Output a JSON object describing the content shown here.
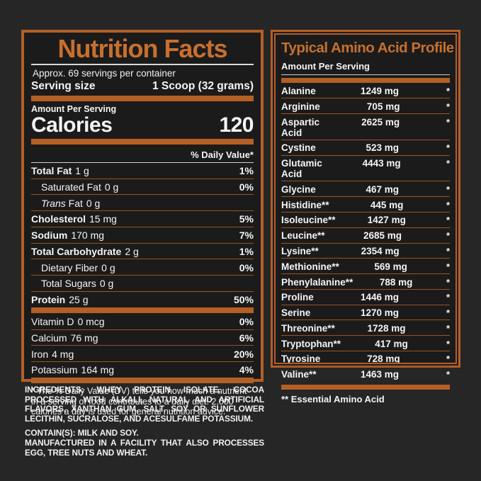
{
  "colors": {
    "background": "#262626",
    "panel_background": "#1b1b1b",
    "accent_orange": "#b45f26",
    "title_orange": "#c7702e",
    "separator_orange": "#9a531f",
    "text_white": "#f5f5f5"
  },
  "nutrition_facts": {
    "title": "Nutrition Facts",
    "servings_line": "Approx. 69 servings per container",
    "serving_size_label": "Serving size",
    "serving_size_value": "1 Scoop (32 grams)",
    "amount_per_serving_label": "Amount Per Serving",
    "calories_label": "Calories",
    "calories_value": "120",
    "daily_value_header": "% Daily Value*",
    "rows": [
      {
        "name": "Total Fat",
        "amount": "1 g",
        "dv": "1%",
        "bold": true,
        "indent": false,
        "italic_first": false,
        "thick_after": false
      },
      {
        "name": "Saturated Fat",
        "amount": "0 g",
        "dv": "0%",
        "bold": false,
        "indent": true,
        "italic_first": false,
        "thick_after": false
      },
      {
        "name": "Trans Fat",
        "amount": "0 g",
        "dv": "",
        "bold": false,
        "indent": true,
        "italic_first": true,
        "thick_after": false
      },
      {
        "name": "Cholesterol",
        "amount": "15 mg",
        "dv": "5%",
        "bold": true,
        "indent": false,
        "italic_first": false,
        "thick_after": false
      },
      {
        "name": "Sodium",
        "amount": "170 mg",
        "dv": "7%",
        "bold": true,
        "indent": false,
        "italic_first": false,
        "thick_after": false
      },
      {
        "name": "Total Carbohydrate",
        "amount": "2 g",
        "dv": "1%",
        "bold": true,
        "indent": false,
        "italic_first": false,
        "thick_after": false
      },
      {
        "name": "Dietary Fiber",
        "amount": "0 g",
        "dv": "0%",
        "bold": false,
        "indent": true,
        "italic_first": false,
        "thick_after": false
      },
      {
        "name": "Total Sugars",
        "amount": "0 g",
        "dv": "",
        "bold": false,
        "indent": true,
        "italic_first": false,
        "thick_after": false
      },
      {
        "name": "Protein",
        "amount": "25 g",
        "dv": "50%",
        "bold": true,
        "indent": false,
        "italic_first": false,
        "thick_after": true
      },
      {
        "name": "Vitamin D",
        "amount": "0 mcg",
        "dv": "0%",
        "bold": false,
        "indent": false,
        "italic_first": false,
        "thick_after": false
      },
      {
        "name": "Calcium",
        "amount": "76 mg",
        "dv": "6%",
        "bold": false,
        "indent": false,
        "italic_first": false,
        "thick_after": false
      },
      {
        "name": "Iron",
        "amount": "4 mg",
        "dv": "20%",
        "bold": false,
        "indent": false,
        "italic_first": false,
        "thick_after": false
      },
      {
        "name": "Potassium",
        "amount": "164 mg",
        "dv": "4%",
        "bold": false,
        "indent": false,
        "italic_first": false,
        "thick_after": true
      }
    ],
    "footnote": "* The % Daily Value (DV) tells you how much a nutrient in a serving of food contributes to a daily diet. 2,000 calories a day is used for general nutrition advice."
  },
  "amino_profile": {
    "title": "Typical Amino Acid Profile",
    "subtitle": "Amount Per Serving",
    "rows": [
      {
        "name": "Alanine",
        "amount": "1249 mg",
        "mark": "*"
      },
      {
        "name": "Arginine",
        "amount": "705 mg",
        "mark": "*"
      },
      {
        "name": "Aspartic Acid",
        "amount": "2625 mg",
        "mark": "*"
      },
      {
        "name": "Cystine",
        "amount": "523 mg",
        "mark": "*"
      },
      {
        "name": "Glutamic Acid",
        "amount": "4443 mg",
        "mark": "*"
      },
      {
        "name": "Glycine",
        "amount": "467 mg",
        "mark": "*"
      },
      {
        "name": "Histidine**",
        "amount": "445 mg",
        "mark": "*"
      },
      {
        "name": "Isoleucine**",
        "amount": "1427 mg",
        "mark": "*"
      },
      {
        "name": "Leucine**",
        "amount": "2685 mg",
        "mark": "*"
      },
      {
        "name": "Lysine**",
        "amount": "2354 mg",
        "mark": "*"
      },
      {
        "name": "Methionine**",
        "amount": "569 mg",
        "mark": "*"
      },
      {
        "name": "Phenylalanine**",
        "amount": "788 mg",
        "mark": "*"
      },
      {
        "name": "Proline",
        "amount": "1446 mg",
        "mark": "*"
      },
      {
        "name": "Serine",
        "amount": "1270 mg",
        "mark": "*"
      },
      {
        "name": "Threonine**",
        "amount": "1728 mg",
        "mark": "*"
      },
      {
        "name": "Tryptophan**",
        "amount": "417 mg",
        "mark": "*"
      },
      {
        "name": "Tyrosine",
        "amount": "728 mg",
        "mark": "*"
      },
      {
        "name": "Valine**",
        "amount": "1463 mg",
        "mark": "*"
      }
    ],
    "footnote": "** Essential Amino Acid"
  },
  "bottom": {
    "ingredients": "INGREDIENTS: WHEY PROTEIN ISOLATE, COCOA PROCESSED WITH ALKALI, NATURAL AND ARTIFICIAL FLAVORS, XANTHAN GUM, SALT, SOY OR SUNFLOWER LECITHIN, SUCRALOSE, AND ACESULFAME POTASSIUM.",
    "contains": "CONTAIN(S): MILK AND SOY.",
    "manufactured": "MANUFACTURED IN A FACILITY THAT ALSO PROCESSES EGG, TREE NUTS AND WHEAT."
  }
}
